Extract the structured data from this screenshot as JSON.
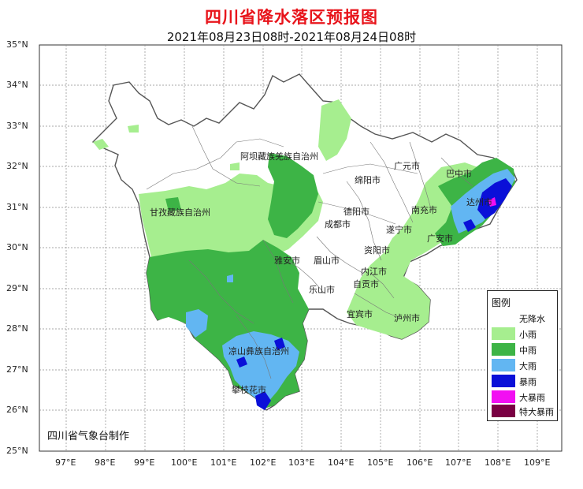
{
  "title": "四川省降水落区预报图",
  "subtitle": "2021年08月23日08时-2021年08月24日08时",
  "credit": "四川省气象台制作",
  "axes": {
    "lat_labels": [
      "35°N",
      "34°N",
      "33°N",
      "32°N",
      "31°N",
      "30°N",
      "29°N",
      "28°N",
      "27°N",
      "26°N",
      "25°N"
    ],
    "lon_labels": [
      "97°E",
      "98°E",
      "99°E",
      "100°E",
      "101°E",
      "102°E",
      "103°E",
      "104°E",
      "105°E",
      "106°E",
      "107°E",
      "108°E",
      "109°E"
    ]
  },
  "legend": {
    "title": "图例",
    "items": [
      {
        "label": "无降水",
        "color": "#ffffff"
      },
      {
        "label": "小雨",
        "color": "#a6ee8f"
      },
      {
        "label": "中雨",
        "color": "#3db446"
      },
      {
        "label": "大雨",
        "color": "#62b6f2"
      },
      {
        "label": "暴雨",
        "color": "#0a10d8"
      },
      {
        "label": "大暴雨",
        "color": "#f20ff2"
      },
      {
        "label": "特大暴雨",
        "color": "#7a0043"
      }
    ]
  },
  "places": {
    "aba": "阿坝藏族羌族自治州",
    "ganzi": "甘孜藏族自治州",
    "liangshan": "凉山彝族自治州",
    "panzhihua": "攀枝花市",
    "guangyuan": "广元市",
    "bazhong": "巴中市",
    "mianyang": "绵阳市",
    "dazhou": "达州市",
    "nanchong": "南充市",
    "deyang": "德阳市",
    "chengdu": "成都市",
    "suining": "遂宁市",
    "guangan": "广安市",
    "yaan": "雅安市",
    "meishan": "眉山市",
    "ziyang": "资阳市",
    "neijiang": "内江市",
    "leshan": "乐山市",
    "zigong": "自贡市",
    "yibin": "宜宾市",
    "luzhou": "泸州市"
  }
}
